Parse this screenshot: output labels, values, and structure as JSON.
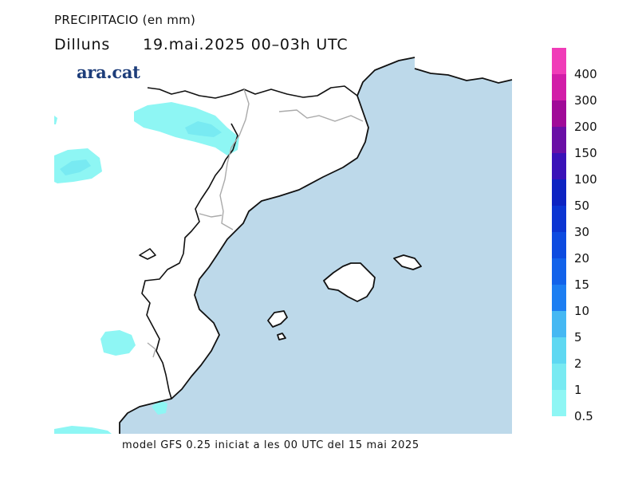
{
  "title": "PRECIPITACIO (en mm)",
  "subtitle": {
    "day": "Dilluns",
    "datetime": "19.mai.2025 00–03h UTC"
  },
  "logo": {
    "text": "ara.cat"
  },
  "footer": "model GFS 0.25 iniciat a les 00 UTC del 15 mai 2025",
  "map": {
    "sea_color": "#bdd9ea",
    "land_color": "#ffffff",
    "coast_color": "#111111",
    "border_color": "#aaaaaa"
  },
  "legend": {
    "levels": [
      {
        "label": "0.5",
        "color": "#8ef6f4"
      },
      {
        "label": "1",
        "color": "#78eaf2"
      },
      {
        "label": "2",
        "color": "#5ed8f2"
      },
      {
        "label": "5",
        "color": "#45b8f3"
      },
      {
        "label": "10",
        "color": "#1c7ef2"
      },
      {
        "label": "15",
        "color": "#1262ea"
      },
      {
        "label": "20",
        "color": "#0d4be0"
      },
      {
        "label": "30",
        "color": "#0b35d2"
      },
      {
        "label": "50",
        "color": "#0d23c2"
      },
      {
        "label": "100",
        "color": "#3a12b8"
      },
      {
        "label": "150",
        "color": "#6a0fa6"
      },
      {
        "label": "200",
        "color": "#a00a98"
      },
      {
        "label": "300",
        "color": "#d21da8"
      },
      {
        "label": "400",
        "color": "#f03cb8"
      }
    ],
    "top_color": "#ff55c8"
  }
}
